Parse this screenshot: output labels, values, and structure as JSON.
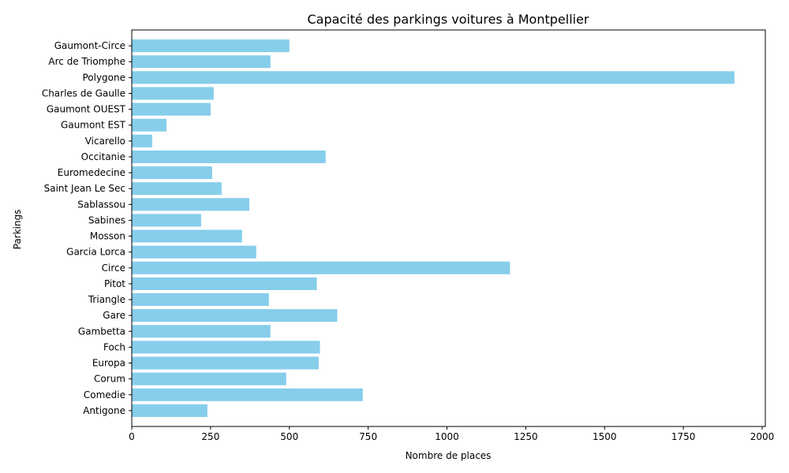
{
  "chart_data": {
    "type": "bar",
    "orientation": "horizontal",
    "title": "Capacité des parkings voitures à Montpellier",
    "xlabel": "Nombre de places",
    "ylabel": "Parkings",
    "xlim": [
      0,
      2010
    ],
    "x_ticks": [
      0,
      250,
      500,
      750,
      1000,
      1250,
      1500,
      1750,
      2000
    ],
    "grid": false,
    "bar_color": "#87ceeb",
    "categories": [
      "Antigone",
      "Comedie",
      "Corum",
      "Europa",
      "Foch",
      "Gambetta",
      "Gare",
      "Triangle",
      "Pitot",
      "Circe",
      "Garcia Lorca",
      "Mosson",
      "Sabines",
      "Sablassou",
      "Saint Jean Le Sec",
      "Euromedecine",
      "Occitanie",
      "Vicarello",
      "Gaumont EST",
      "Gaumont OUEST",
      "Charles de Gaulle",
      "Polygone",
      "Arc de Triomphe",
      "Gaumont-Circe"
    ],
    "values": [
      240,
      733,
      490,
      593,
      597,
      440,
      652,
      435,
      587,
      1200,
      395,
      350,
      220,
      373,
      285,
      255,
      615,
      65,
      110,
      250,
      260,
      1912,
      440,
      500
    ]
  }
}
